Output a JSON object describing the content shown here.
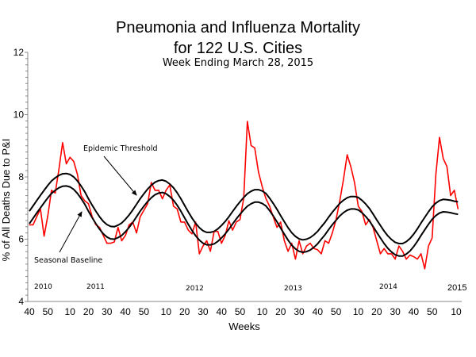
{
  "chart_data": {
    "type": "line",
    "title": "Pneumonia and Influenza Mortality",
    "title_line2": "for 122 U.S. Cities",
    "subtitle": "Week Ending March 28, 2015",
    "xlabel": "Weeks",
    "ylabel": "% of All Deaths Due to P&I",
    "ylim": [
      4,
      12
    ],
    "y_ticks": [
      "4",
      "6",
      "8",
      "10",
      "12"
    ],
    "grid": false,
    "x_ticks": [
      "2010-40",
      "2010-50",
      "2011-10",
      "2011-20",
      "2011-30",
      "2011-40",
      "2011-50",
      "2012-10",
      "2012-20",
      "2012-30",
      "2012-40",
      "2012-50",
      "2013-10",
      "2013-20",
      "2013-30",
      "2013-40",
      "2013-50",
      "2014-10",
      "2014-20",
      "2014-30",
      "2014-40",
      "2014-50",
      "2015-10"
    ],
    "year_labels": [
      "2010",
      "2011",
      "2012",
      "2013",
      "2014",
      "2015"
    ],
    "annotations": [
      "Epidemic Threshold",
      "Seasonal Baseline"
    ],
    "colors": {
      "observed": "#ff0000",
      "baseline": "#000000",
      "threshold": "#000000"
    },
    "x": [
      "2010-40",
      "2010-42",
      "2010-44",
      "2010-46",
      "2010-48",
      "2010-50",
      "2010-52",
      "2011-2",
      "2011-4",
      "2011-6",
      "2011-8",
      "2011-10",
      "2011-12",
      "2011-14",
      "2011-16",
      "2011-18",
      "2011-20",
      "2011-22",
      "2011-24",
      "2011-26",
      "2011-28",
      "2011-30",
      "2011-32",
      "2011-34",
      "2011-36",
      "2011-38",
      "2011-40",
      "2011-42",
      "2011-44",
      "2011-46",
      "2011-48",
      "2011-50",
      "2011-52",
      "2012-2",
      "2012-4",
      "2012-6",
      "2012-8",
      "2012-10",
      "2012-12",
      "2012-14",
      "2012-16",
      "2012-18",
      "2012-20",
      "2012-22",
      "2012-24",
      "2012-26",
      "2012-28",
      "2012-30",
      "2012-32",
      "2012-34",
      "2012-36",
      "2012-38",
      "2012-40",
      "2012-42",
      "2012-44",
      "2012-46",
      "2012-48",
      "2012-50",
      "2012-52",
      "2013-2",
      "2013-4",
      "2013-6",
      "2013-8",
      "2013-10",
      "2013-12",
      "2013-14",
      "2013-16",
      "2013-18",
      "2013-20",
      "2013-22",
      "2013-24",
      "2013-26",
      "2013-28",
      "2013-30",
      "2013-32",
      "2013-34",
      "2013-36",
      "2013-38",
      "2013-40",
      "2013-42",
      "2013-44",
      "2013-46",
      "2013-48",
      "2013-50",
      "2013-52",
      "2014-2",
      "2014-4",
      "2014-6",
      "2014-8",
      "2014-10",
      "2014-12",
      "2014-14",
      "2014-16",
      "2014-18",
      "2014-20",
      "2014-22",
      "2014-24",
      "2014-26",
      "2014-28",
      "2014-30",
      "2014-32",
      "2014-34",
      "2014-36",
      "2014-38",
      "2014-40",
      "2014-42",
      "2014-44",
      "2014-46",
      "2014-48",
      "2014-50",
      "2014-52",
      "2015-1",
      "2015-3",
      "2015-5",
      "2015-7",
      "2015-9",
      "2015-11"
    ],
    "series": [
      {
        "key": "observed",
        "values": [
          6.46,
          6.46,
          6.72,
          6.97,
          6.1,
          6.76,
          7.57,
          7.48,
          8.25,
          9.1,
          8.42,
          8.63,
          8.5,
          8.08,
          7.4,
          7.23,
          7.14,
          6.72,
          6.46,
          6.38,
          6.12,
          5.87,
          5.87,
          5.91,
          6.38,
          5.95,
          6.12,
          6.46,
          6.55,
          6.2,
          6.72,
          6.93,
          7.14,
          7.82,
          7.57,
          7.57,
          7.3,
          7.57,
          7.74,
          7.06,
          6.97,
          6.55,
          6.55,
          6.29,
          6.17,
          6.55,
          5.53,
          5.78,
          5.95,
          5.61,
          6.25,
          6.25,
          5.87,
          6.12,
          6.59,
          6.29,
          6.55,
          6.63,
          7.31,
          9.78,
          9.01,
          8.93,
          8.16,
          7.69,
          7.31,
          7.06,
          6.72,
          6.38,
          6.55,
          5.95,
          5.61,
          5.87,
          5.36,
          5.95,
          5.53,
          5.78,
          5.87,
          5.7,
          5.66,
          5.53,
          5.95,
          5.87,
          6.21,
          6.63,
          7.23,
          7.91,
          8.71,
          8.33,
          7.82,
          7.06,
          6.89,
          6.46,
          6.63,
          6.38,
          5.95,
          5.53,
          5.7,
          5.53,
          5.53,
          5.36,
          5.78,
          5.61,
          5.36,
          5.49,
          5.44,
          5.36,
          5.53,
          5.05,
          5.78,
          6.04,
          8.08,
          9.27,
          8.59,
          8.33,
          7.4,
          7.57,
          6.97
        ]
      },
      {
        "key": "threshold",
        "name": "Epidemic Threshold",
        "values": [
          6.9,
          7.07,
          7.24,
          7.41,
          7.57,
          7.73,
          7.87,
          7.97,
          8.05,
          8.1,
          8.11,
          8.08,
          8.0,
          7.87,
          7.71,
          7.52,
          7.3,
          7.09,
          6.9,
          6.72,
          6.57,
          6.47,
          6.41,
          6.4,
          6.45,
          6.52,
          6.64,
          6.78,
          6.94,
          7.12,
          7.3,
          7.46,
          7.61,
          7.73,
          7.83,
          7.88,
          7.9,
          7.86,
          7.77,
          7.65,
          7.49,
          7.3,
          7.09,
          6.88,
          6.68,
          6.51,
          6.37,
          6.27,
          6.22,
          6.22,
          6.25,
          6.33,
          6.44,
          6.57,
          6.72,
          6.89,
          7.05,
          7.2,
          7.34,
          7.46,
          7.54,
          7.59,
          7.59,
          7.55,
          7.47,
          7.32,
          7.15,
          6.96,
          6.76,
          6.56,
          6.37,
          6.21,
          6.09,
          6.01,
          5.98,
          6.0,
          6.05,
          6.14,
          6.25,
          6.4,
          6.54,
          6.71,
          6.87,
          7.01,
          7.15,
          7.25,
          7.33,
          7.37,
          7.37,
          7.34,
          7.25,
          7.13,
          6.99,
          6.81,
          6.62,
          6.44,
          6.26,
          6.11,
          5.99,
          5.9,
          5.86,
          5.86,
          5.92,
          6.02,
          6.16,
          6.33,
          6.52,
          6.7,
          6.88,
          7.04,
          7.16,
          7.24,
          7.28,
          7.27,
          7.25,
          7.22,
          7.2
        ]
      },
      {
        "key": "baseline",
        "name": "Seasonal Baseline",
        "values": [
          6.5,
          6.67,
          6.84,
          7.01,
          7.17,
          7.33,
          7.47,
          7.57,
          7.65,
          7.7,
          7.71,
          7.68,
          7.6,
          7.47,
          7.31,
          7.12,
          6.9,
          6.69,
          6.5,
          6.32,
          6.17,
          6.07,
          6.01,
          6.0,
          6.05,
          6.12,
          6.24,
          6.38,
          6.54,
          6.72,
          6.9,
          7.06,
          7.21,
          7.33,
          7.43,
          7.48,
          7.5,
          7.46,
          7.37,
          7.25,
          7.09,
          6.9,
          6.69,
          6.48,
          6.28,
          6.11,
          5.97,
          5.87,
          5.82,
          5.82,
          5.85,
          5.93,
          6.04,
          6.17,
          6.32,
          6.49,
          6.65,
          6.8,
          6.94,
          7.06,
          7.14,
          7.19,
          7.19,
          7.15,
          7.07,
          6.92,
          6.75,
          6.56,
          6.36,
          6.16,
          5.97,
          5.81,
          5.69,
          5.61,
          5.58,
          5.6,
          5.65,
          5.74,
          5.85,
          6.0,
          6.14,
          6.31,
          6.47,
          6.61,
          6.75,
          6.85,
          6.93,
          6.97,
          6.97,
          6.94,
          6.85,
          6.73,
          6.59,
          6.41,
          6.22,
          6.04,
          5.86,
          5.71,
          5.59,
          5.5,
          5.46,
          5.46,
          5.52,
          5.62,
          5.76,
          5.93,
          6.12,
          6.3,
          6.48,
          6.64,
          6.76,
          6.84,
          6.88,
          6.87,
          6.85,
          6.82,
          6.8
        ]
      }
    ]
  }
}
